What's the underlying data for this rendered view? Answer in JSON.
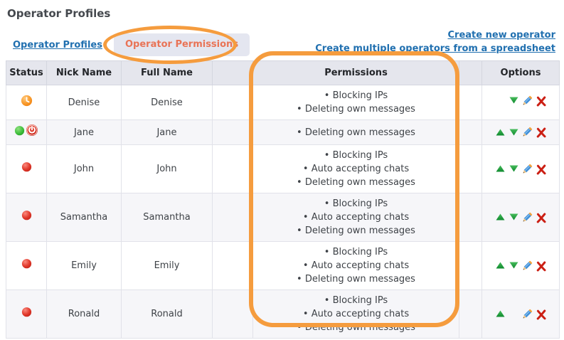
{
  "page_title": "Operator Profiles",
  "tabs": {
    "profiles_label": "Operator Profiles",
    "permissions_label": "Operator Permissions"
  },
  "actions": {
    "create_new": "Create new operator",
    "create_multiple": "Create multiple operators from a spreadsheet"
  },
  "table": {
    "headers": {
      "status": "Status",
      "nick": "Nick Name",
      "full": "Full Name",
      "spacer1": "",
      "permissions": "Permissions",
      "spacer2": "",
      "options": "Options"
    },
    "rows": [
      {
        "status": [
          "away-clock"
        ],
        "nick": "Denise",
        "full": "Denise",
        "permissions": [
          "Blocking IPs",
          "Deleting own messages"
        ],
        "options": [
          "move-down",
          "edit",
          "delete"
        ]
      },
      {
        "status": [
          "online",
          "logout-power"
        ],
        "nick": "Jane",
        "full": "Jane",
        "permissions": [
          "Deleting own messages"
        ],
        "options": [
          "move-up",
          "move-down",
          "edit",
          "delete"
        ]
      },
      {
        "status": [
          "offline"
        ],
        "nick": "John",
        "full": "John",
        "permissions": [
          "Blocking IPs",
          "Auto accepting chats",
          "Deleting own messages"
        ],
        "options": [
          "move-up",
          "move-down",
          "edit",
          "delete"
        ]
      },
      {
        "status": [
          "offline"
        ],
        "nick": "Samantha",
        "full": "Samantha",
        "permissions": [
          "Blocking IPs",
          "Auto accepting chats",
          "Deleting own messages"
        ],
        "options": [
          "move-up",
          "move-down",
          "edit",
          "delete"
        ]
      },
      {
        "status": [
          "offline"
        ],
        "nick": "Emily",
        "full": "Emily",
        "permissions": [
          "Blocking IPs",
          "Auto accepting chats",
          "Deleting own messages"
        ],
        "options": [
          "move-up",
          "move-down",
          "edit",
          "delete"
        ]
      },
      {
        "status": [
          "offline"
        ],
        "nick": "Ronald",
        "full": "Ronald",
        "permissions": [
          "Blocking IPs",
          "Auto accepting chats",
          "Deleting own messages"
        ],
        "options": [
          "move-up",
          "edit",
          "delete"
        ]
      }
    ]
  },
  "colors": {
    "link_blue": "#2170b0",
    "tab_active_text": "#e97356",
    "tab_pill_bg": "#e4e6f0",
    "annotation_orange": "#f59c3e",
    "header_bg": "#e5e6ed",
    "row_alt_bg": "#f6f6f9",
    "status_offline": "#d6261b",
    "status_online": "#35b934",
    "status_away": "#f6911e"
  }
}
